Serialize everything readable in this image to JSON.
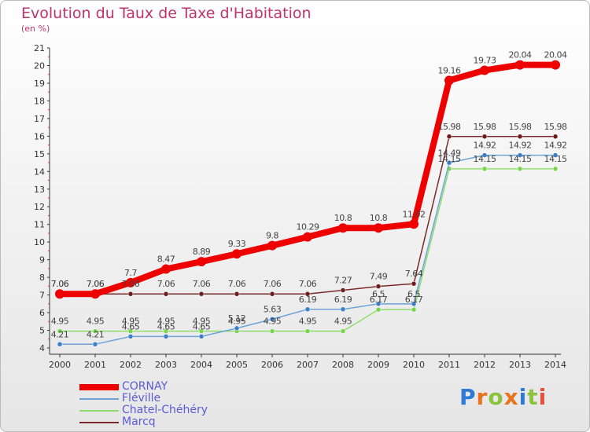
{
  "header": {
    "title": "Evolution du Taux de Taxe d'Habitation",
    "subtitle": "(en %)"
  },
  "logo": {
    "text": "Proxiti",
    "letter_colors": [
      "#2e7bd4",
      "#e8731d",
      "#8ac43f",
      "#e8731d",
      "#2e7bd4",
      "#8ac43f",
      "#e84c3d"
    ]
  },
  "chart_data": {
    "type": "line",
    "title": "Evolution du Taux de Taxe d'Habitation",
    "subtitle": "(en %)",
    "xlabel": "",
    "ylabel": "",
    "x": [
      "2000",
      "2001",
      "2002",
      "2003",
      "2004",
      "2005",
      "2006",
      "2007",
      "2008",
      "2009",
      "2010",
      "2011",
      "2012",
      "2013",
      "2014"
    ],
    "ylim": [
      4,
      21
    ],
    "yticks": [
      4,
      5,
      6,
      7,
      8,
      9,
      10,
      11,
      12,
      13,
      14,
      15,
      16,
      17,
      18,
      19,
      20,
      21
    ],
    "grid": false,
    "legend_position": "bottom-left",
    "series": [
      {
        "name": "CORNAY",
        "color": "#ee0000",
        "values": [
          7.06,
          7.06,
          7.7,
          8.47,
          8.89,
          9.33,
          9.8,
          10.29,
          10.8,
          10.8,
          11.02,
          19.16,
          19.73,
          20.04,
          20.04
        ],
        "labels": [
          "7.06",
          "7.06",
          "7.7",
          "8.47",
          "8.89",
          "9.33",
          "9.8",
          "10.29",
          "10.8",
          "10.8",
          "11.02",
          "19.16",
          "19.73",
          "20.04",
          "20.04"
        ]
      },
      {
        "name": "Fléville",
        "color": "#6ea3d8",
        "values": [
          4.21,
          4.21,
          4.65,
          4.65,
          4.65,
          5.12,
          5.63,
          6.19,
          6.19,
          6.5,
          6.5,
          14.49,
          14.92,
          14.92,
          14.92
        ],
        "labels": [
          "4.21",
          "4.21",
          "4.65",
          "4.65",
          "4.65",
          "5.12",
          "5.63",
          "6.19",
          "6.19",
          "6.5",
          "6.5",
          "14.49",
          "14.92",
          "14.92",
          "14.92"
        ]
      },
      {
        "name": "Chatel-Chéhéry",
        "color": "#8edc6e",
        "values": [
          4.95,
          4.95,
          4.95,
          4.95,
          4.95,
          4.95,
          4.95,
          4.95,
          4.95,
          6.17,
          6.17,
          14.15,
          14.15,
          14.15,
          14.15
        ],
        "labels": [
          "4.95",
          "4.95",
          "4.95",
          "4.95",
          "4.95",
          "4.95",
          "4.95",
          "4.95",
          "4.95",
          "6.17",
          "6.17",
          "14.15",
          "14.15",
          "14.15",
          "14.15"
        ]
      },
      {
        "name": "Marcq",
        "color": "#7a2a2a",
        "values": [
          7.06,
          7.06,
          7.06,
          7.06,
          7.06,
          7.06,
          7.06,
          7.06,
          7.27,
          7.49,
          7.64,
          15.98,
          15.98,
          15.98,
          15.98
        ],
        "labels": [
          "7.06",
          "7.06",
          "7.06",
          "7.06",
          "7.06",
          "7.06",
          "7.06",
          "7.06",
          "7.27",
          "7.49",
          "7.64",
          "15.98",
          "15.98",
          "15.98",
          "15.98"
        ]
      }
    ]
  }
}
